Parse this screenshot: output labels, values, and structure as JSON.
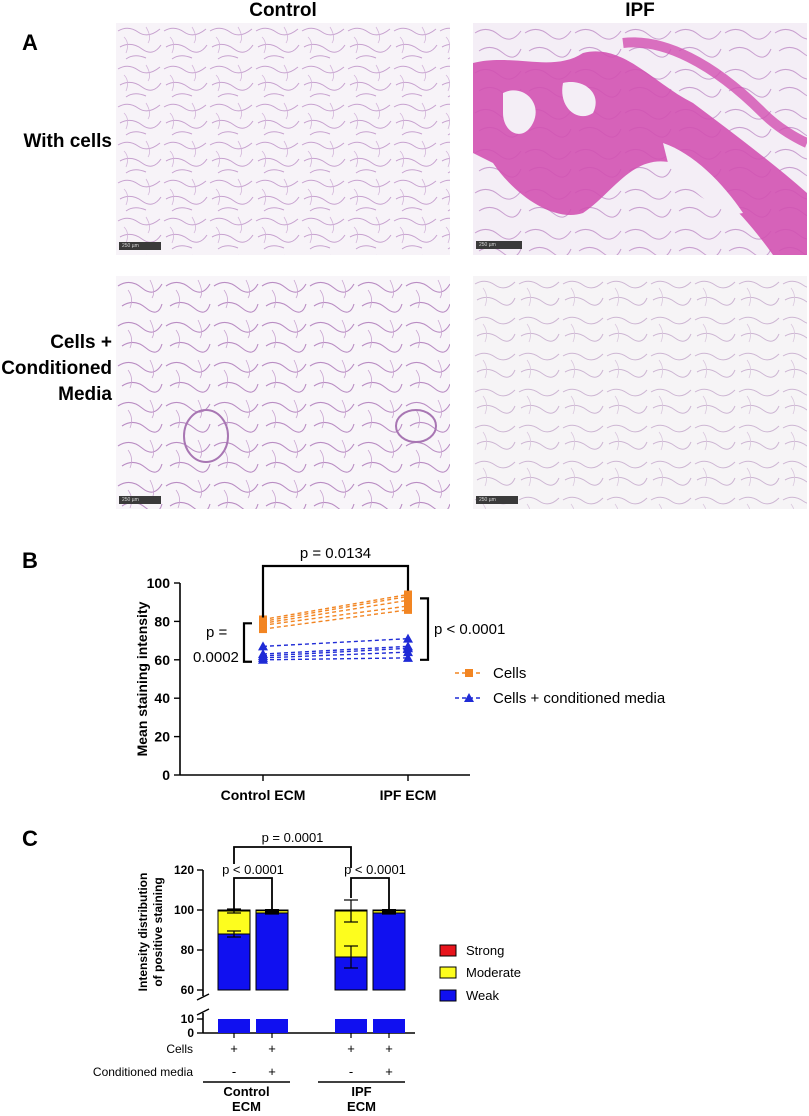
{
  "panel_a": {
    "letter": "A",
    "columns": [
      "Control",
      "IPF"
    ],
    "rows": [
      [
        "With cells"
      ],
      [
        "Cells +",
        "Conditioned",
        "Media"
      ]
    ],
    "scalebars": [
      "250 µm",
      "250 µm",
      "250 µm",
      "250 µm"
    ]
  },
  "chart_data": [
    {
      "type": "line",
      "letter": "B",
      "ylabel": "Mean staining intensity",
      "categories": [
        "Control ECM",
        "IPF ECM"
      ],
      "ylim": [
        0,
        100
      ],
      "yticks": [
        0,
        20,
        40,
        60,
        80,
        100
      ],
      "legend_position": "right",
      "series": [
        {
          "name": "Cells",
          "color": "#f28522",
          "marker": "square",
          "pairs": [
            [
              76,
              86
            ],
            [
              78,
              88
            ],
            [
              79,
              91
            ],
            [
              80,
              93
            ],
            [
              81,
              94
            ]
          ]
        },
        {
          "name": "Cells + conditioned media",
          "color": "#1f2bd6",
          "marker": "triangle",
          "pairs": [
            [
              60,
              61
            ],
            [
              61,
              64
            ],
            [
              62,
              66
            ],
            [
              63,
              67
            ],
            [
              67,
              71
            ]
          ]
        }
      ],
      "annotations": {
        "top": "p = 0.0134",
        "right": "p < 0.0001",
        "left_line1": "p =",
        "left_line2": "0.0002"
      }
    },
    {
      "type": "bar",
      "stacked": true,
      "letter": "C",
      "ylabel_line1": "Intensity distribution",
      "ylabel_line2": "of positive staining",
      "ylim": [
        0,
        120
      ],
      "axis_break": [
        10,
        60
      ],
      "yticks": [
        0,
        10,
        60,
        80,
        100,
        120
      ],
      "groups": [
        {
          "label_line1": "Control",
          "label_line2": "ECM"
        },
        {
          "label_line1": "IPF",
          "label_line2": "ECM"
        }
      ],
      "cells_row_label": "Cells",
      "media_row_label": "Conditioned media",
      "bars": [
        {
          "cells": "+",
          "media": "-",
          "weak": 88,
          "moderate": 11.5,
          "strong": 0.5,
          "weak_err": 1.5,
          "moderate_err": 1.0
        },
        {
          "cells": "+",
          "media": "+",
          "weak": 98.5,
          "moderate": 1.2,
          "strong": 0.3,
          "weak_err": 0.5,
          "moderate_err": 0.5
        },
        {
          "cells": "+",
          "media": "-",
          "weak": 76.5,
          "moderate": 23,
          "strong": 0.5,
          "weak_err": 5.5,
          "moderate_err": 5.5
        },
        {
          "cells": "+",
          "media": "+",
          "weak": 98.5,
          "moderate": 1.2,
          "strong": 0.3,
          "weak_err": 0.5,
          "moderate_err": 0.5
        }
      ],
      "legend": [
        {
          "name": "Strong",
          "color": "#e8141c"
        },
        {
          "name": "Moderate",
          "color": "#fdfd1e"
        },
        {
          "name": "Weak",
          "color": "#1010f0"
        }
      ],
      "annotations": {
        "top": "p = 0.0001",
        "left": "p < 0.0001",
        "right": "p < 0.0001"
      }
    }
  ]
}
